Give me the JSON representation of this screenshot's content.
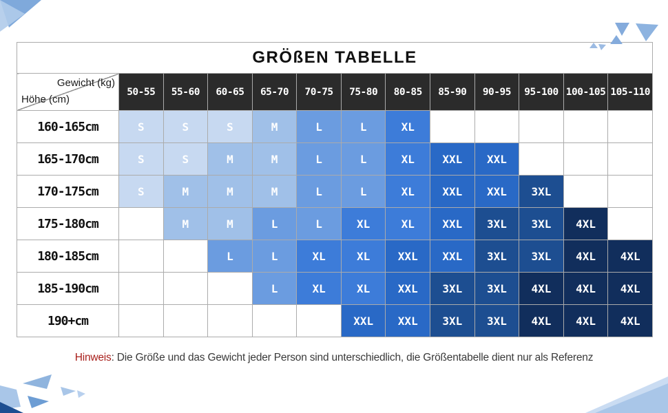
{
  "title": "GRÖßEN TABELLE",
  "header": {
    "corner_top": "Gewicht (kg)",
    "corner_bottom": "Höhe (cm)",
    "weight_columns": [
      "50-55",
      "55-60",
      "60-65",
      "65-70",
      "70-75",
      "75-80",
      "80-85",
      "85-90",
      "90-95",
      "95-100",
      "100-105",
      "105-110"
    ]
  },
  "rows": [
    {
      "height": "160-165cm",
      "sizes": [
        "S",
        "S",
        "S",
        "M",
        "L",
        "L",
        "XL",
        "",
        "",
        "",
        "",
        ""
      ]
    },
    {
      "height": "165-170cm",
      "sizes": [
        "S",
        "S",
        "M",
        "M",
        "L",
        "L",
        "XL",
        "XXL",
        "XXL",
        "",
        "",
        ""
      ]
    },
    {
      "height": "170-175cm",
      "sizes": [
        "S",
        "M",
        "M",
        "M",
        "L",
        "L",
        "XL",
        "XXL",
        "XXL",
        "3XL",
        "",
        ""
      ]
    },
    {
      "height": "175-180cm",
      "sizes": [
        "",
        "M",
        "M",
        "L",
        "L",
        "XL",
        "XL",
        "XXL",
        "3XL",
        "3XL",
        "4XL",
        ""
      ]
    },
    {
      "height": "180-185cm",
      "sizes": [
        "",
        "",
        "L",
        "L",
        "XL",
        "XL",
        "XXL",
        "XXL",
        "3XL",
        "3XL",
        "4XL",
        "4XL"
      ]
    },
    {
      "height": "185-190cm",
      "sizes": [
        "",
        "",
        "",
        "L",
        "XL",
        "XL",
        "XXL",
        "3XL",
        "3XL",
        "4XL",
        "4XL",
        "4XL"
      ]
    },
    {
      "height": "190+cm",
      "sizes": [
        "",
        "",
        "",
        "",
        "",
        "XXL",
        "XXL",
        "3XL",
        "3XL",
        "4XL",
        "4XL",
        "4XL"
      ]
    }
  ],
  "size_colors": {
    "S": "#c7d9f1",
    "M": "#a0c0e8",
    "L": "#6b9ce0",
    "XL": "#3d7cd9",
    "XXL": "#2969c6",
    "3XL": "#1d4e91",
    "4XL": "#112e5c"
  },
  "header_bg": "#2b2b2b",
  "note": {
    "label": "Hinweis",
    "text": ": Die Größe und das Gewicht jeder Person sind unterschiedlich, die Größentabelle dient nur als Referenz",
    "label_color": "#a81e1a"
  },
  "decor_colors": {
    "light_blue": "#b0cbea",
    "medium_blue": "#7fa9db",
    "dark_navy": "#1d4e91"
  }
}
